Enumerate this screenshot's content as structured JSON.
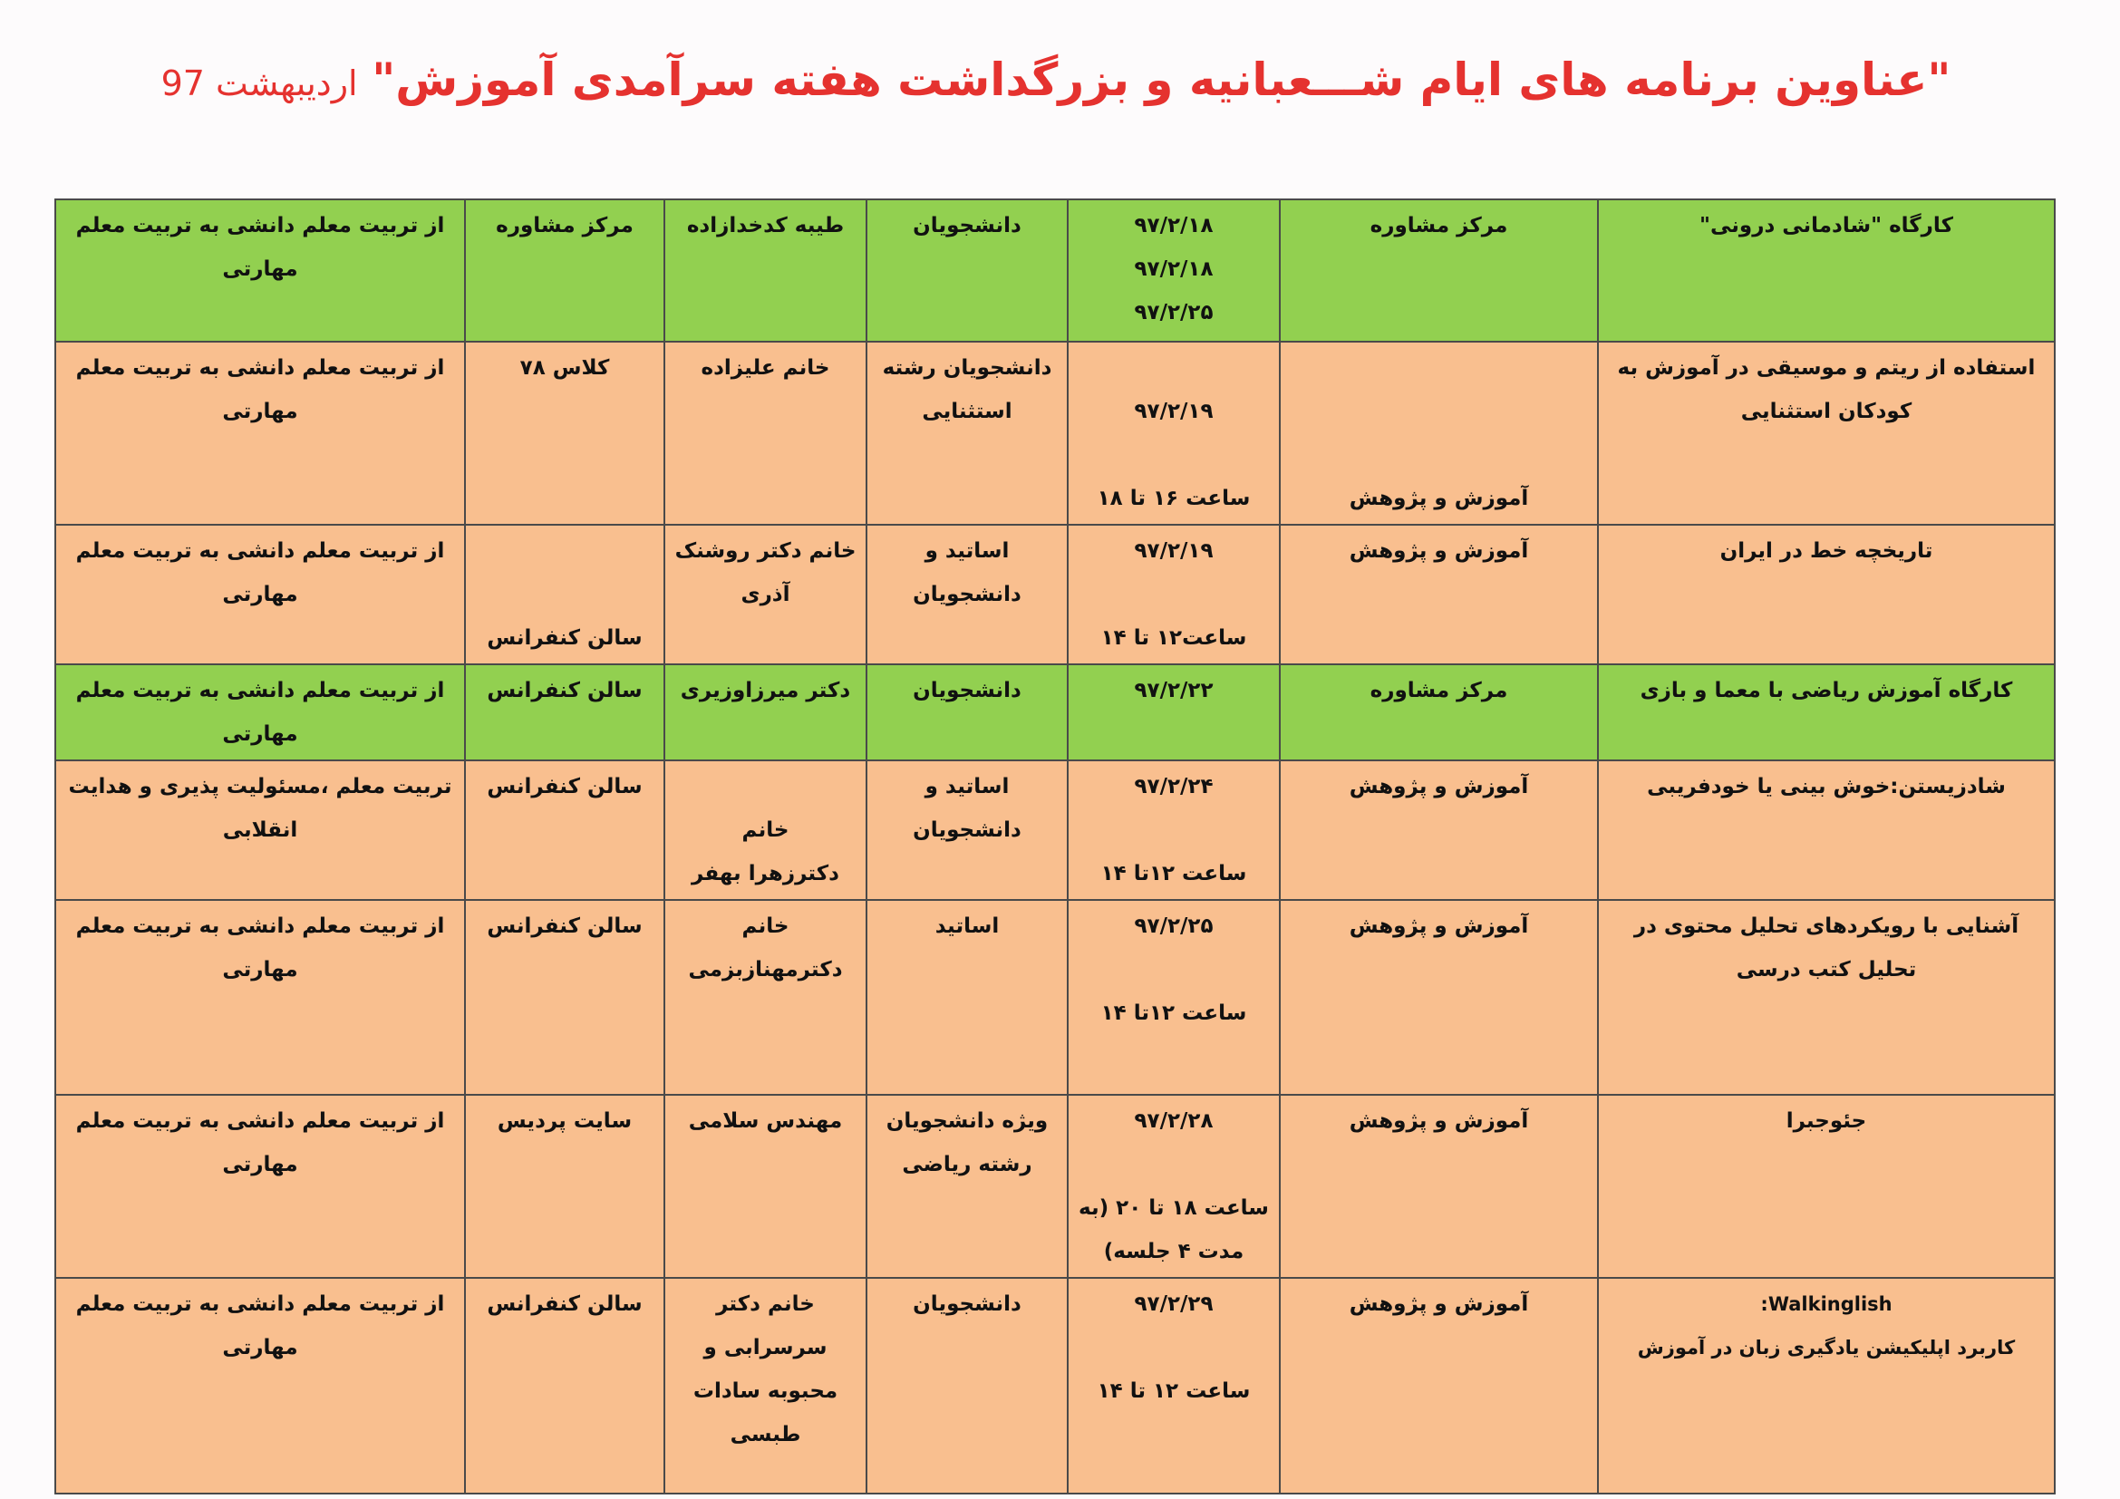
{
  "title": {
    "main": "\"عناوین برنامه های ایام شـــعبانیه و بزرگداشت هفته سرآمدی آموزش\"",
    "sub": "اردیبهشت 97"
  },
  "colors": {
    "title": "#e5322f",
    "green_row": "#92d050",
    "peach_row": "#f9bf8f"
  },
  "rows": [
    {
      "style": "green",
      "title": "کارگاه \"شادمانی درونی\"",
      "organizer": "مرکز مشاوره",
      "date": "۹۷/۲/۱۸\n۹۷/۲/۱۸\n۹۷/۲/۲۵",
      "audience": "دانشجویان",
      "presenter": "طیبه کدخدازاده",
      "venue": "مرکز مشاوره",
      "theme": "از تربیت معلم دانشی به تربیت معلم مهارتی"
    },
    {
      "style": "peach",
      "title": "استفاده از ریتم و موسیقی در آموزش به کودکان استثنایی",
      "organizer": "آموزش و پژوهش",
      "date": "\n۹۷/۲/۱۹\n\nساعت ۱۶ تا ۱۸",
      "audience": "دانشجویان رشته استثنایی",
      "presenter": "خانم علیزاده",
      "venue": "کلاس ۷۸",
      "theme": "از تربیت معلم دانشی به تربیت معلم مهارتی"
    },
    {
      "style": "peach",
      "title": "تاریخچه خط در ایران",
      "organizer": "آموزش و پژوهش",
      "date": "۹۷/۲/۱۹\n\nساعت۱۲ تا ۱۴",
      "audience": "اساتید و دانشجویان",
      "presenter": "خانم دکتر روشنک آذری",
      "venue": "سالن کنفرانس",
      "theme": "از تربیت معلم دانشی به تربیت معلم مهارتی"
    },
    {
      "style": "green",
      "title": "کارگاه آموزش ریاضی با معما و بازی",
      "organizer": "مرکز مشاوره",
      "date": "۹۷/۲/۲۲",
      "audience": "دانشجویان",
      "presenter": "دکتر میرزاوزیری",
      "venue": "سالن کنفرانس",
      "theme": "از تربیت معلم دانشی به تربیت معلم مهارتی"
    },
    {
      "style": "peach",
      "title": "شادزیستن:خوش بینی یا خودفریبی",
      "organizer": "آموزش و پژوهش",
      "date": "۹۷/۲/۲۴\n\nساعت ۱۲تا ۱۴",
      "audience": "اساتید و دانشجویان",
      "presenter": "\nخانم\nدکترزهرا بهفر",
      "venue": "سالن کنفرانس",
      "theme": "تربیت معلم ،مسئولیت پذیری و هدایت انقلابی"
    },
    {
      "style": "peach",
      "title": "آشنایی با رویکردهای تحلیل محتوی در تحلیل کتب درسی",
      "organizer": "آموزش و پژوهش",
      "date": "۹۷/۲/۲۵\n\nساعت ۱۲تا ۱۴",
      "audience": "اساتید",
      "presenter": "خانم\nدکترمهنازبزمی",
      "venue": "سالن کنفرانس",
      "theme": "از تربیت معلم دانشی به تربیت معلم مهارتی"
    },
    {
      "style": "peach",
      "title": "جئوجبرا",
      "organizer": "آموزش و پژوهش",
      "date": "۹۷/۲/۲۸\n\nساعت ۱۸ تا ۲۰ (به مدت ۴ جلسه)",
      "audience": "ویژه دانشجویان رشته ریاضی",
      "presenter": "مهندس سلامی",
      "venue": "سایت پردیس",
      "theme": "از تربیت معلم دانشی به تربیت معلم مهارتی"
    },
    {
      "style": "peach",
      "title": "Walkinglish:\nکاربرد اپلیکیشن یادگیری زبان در آموزش",
      "organizer": "آموزش و پژوهش",
      "date": "۹۷/۲/۲۹\n\nساعت ۱۲ تا ۱۴",
      "audience": "دانشجویان",
      "presenter": "خانم دکتر سرسرابی و محبوبه سادات طبسی",
      "venue": "سالن کنفرانس",
      "theme": "از تربیت معلم دانشی به تربیت معلم مهارتی"
    }
  ]
}
